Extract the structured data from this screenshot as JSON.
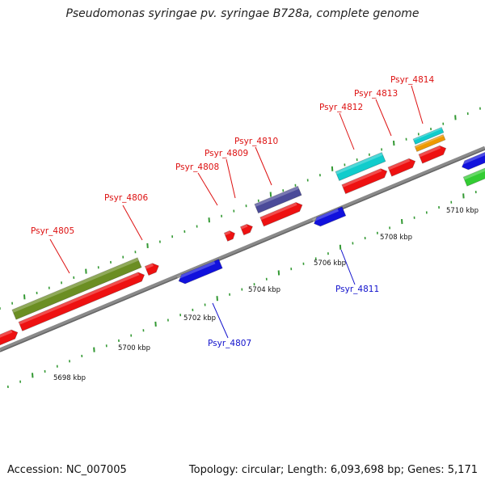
{
  "title": "Pseudomonas syringae pv. syringae B728a, complete genome",
  "footer": {
    "accession": "Accession: NC_007005",
    "summary": "Topology: circular; Length: 6,093,698 bp; Genes: 5,171"
  },
  "colors": {
    "backbone": "#8a8a8a",
    "forward_gene": "#ee1111",
    "reverse_gene": "#1111dd",
    "cyan_feature": "#11cccc",
    "olive_feature": "#6b8e23",
    "purple_feature": "#4b4b99",
    "orange_feature": "#ee9900",
    "green_feature": "#33cc33",
    "tick": "#339933",
    "label_forward": "#dd1111",
    "label_reverse": "#1111cc"
  },
  "kbp_labels": [
    "5698 kbp",
    "5700 kbp",
    "5702 kbp",
    "5704 kbp",
    "5706 kbp",
    "5708 kbp",
    "5710 kbp"
  ],
  "gene_labels": [
    {
      "text": "Psyr_4805",
      "strand": "forward"
    },
    {
      "text": "Psyr_4806",
      "strand": "forward"
    },
    {
      "text": "Psyr_4807",
      "strand": "reverse"
    },
    {
      "text": "Psyr_4808",
      "strand": "forward"
    },
    {
      "text": "Psyr_4809",
      "strand": "forward"
    },
    {
      "text": "Psyr_4810",
      "strand": "forward"
    },
    {
      "text": "Psyr_4811",
      "strand": "reverse"
    },
    {
      "text": "Psyr_4812",
      "strand": "forward"
    },
    {
      "text": "Psyr_4813",
      "strand": "forward"
    },
    {
      "text": "Psyr_4814",
      "strand": "forward"
    }
  ]
}
